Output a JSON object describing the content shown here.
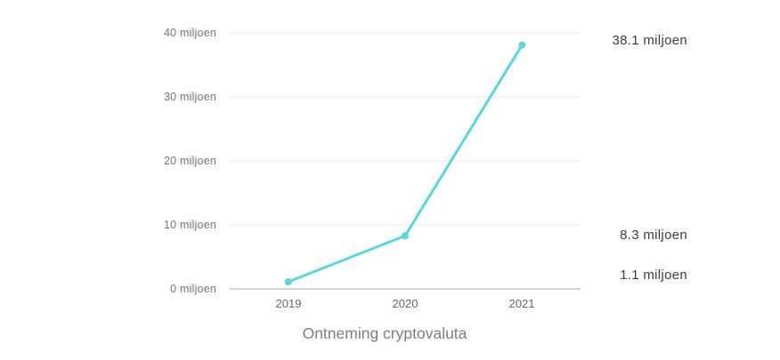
{
  "chart_data": {
    "type": "line",
    "title": "Ontneming cryptovaluta",
    "x": [
      "2019",
      "2020",
      "2021"
    ],
    "series": [
      {
        "name": "Ontneming cryptovaluta",
        "values": [
          1.1,
          8.3,
          38.1
        ]
      }
    ],
    "point_labels": [
      "1.1 miljoen",
      "8.3 miljoen",
      "38.1 miljoen"
    ],
    "y_ticks": [
      0,
      10,
      20,
      30,
      40
    ],
    "y_tick_labels": [
      "0 miljoen",
      "10 miljoen",
      "20 miljoen",
      "30 miljoen",
      "40 miljoen"
    ],
    "ylim": [
      0,
      40
    ],
    "grid": true,
    "legend": false,
    "colors": {
      "line": "#55d8e0",
      "grid": "#e9e9e9",
      "axis": "#c6c6c6",
      "y_tick_text": "#757575",
      "x_tick_text": "#686868",
      "value_text": "#3d3d3d",
      "title_text": "#7f7f7f"
    }
  }
}
